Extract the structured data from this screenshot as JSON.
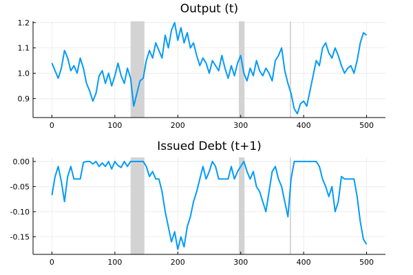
{
  "chart_data": [
    {
      "type": "line",
      "title": "Output (t)",
      "xlabel": "",
      "ylabel": "",
      "xlim": [
        -30,
        530
      ],
      "ylim": [
        0.825,
        1.205
      ],
      "xticks": [
        0,
        100,
        200,
        300,
        400,
        500
      ],
      "xtick_labels": [
        "0",
        "100",
        "200",
        "300",
        "400",
        "500"
      ],
      "yticks": [
        0.9,
        1.0,
        1.1,
        1.2
      ],
      "ytick_labels": [
        "0.9",
        "1.0",
        "1.1",
        "1.2"
      ],
      "grid": true,
      "legend": "none",
      "shaded_regions": [
        [
          125,
          147
        ],
        [
          297,
          306
        ],
        [
          378,
          380
        ]
      ],
      "series_color": "#009af9",
      "band_color": "#d3d3d3",
      "x": [
        0,
        5,
        10,
        15,
        20,
        25,
        30,
        35,
        40,
        45,
        50,
        55,
        60,
        65,
        70,
        75,
        80,
        85,
        90,
        95,
        100,
        105,
        110,
        115,
        120,
        125,
        130,
        135,
        140,
        145,
        150,
        155,
        160,
        165,
        170,
        175,
        180,
        185,
        190,
        195,
        200,
        205,
        210,
        215,
        220,
        225,
        230,
        235,
        240,
        245,
        250,
        255,
        260,
        265,
        270,
        275,
        280,
        285,
        290,
        295,
        300,
        305,
        310,
        315,
        320,
        325,
        330,
        335,
        340,
        345,
        350,
        355,
        360,
        365,
        370,
        375,
        380,
        385,
        390,
        395,
        400,
        405,
        410,
        415,
        420,
        425,
        430,
        435,
        440,
        445,
        450,
        455,
        460,
        465,
        470,
        475,
        480,
        485,
        490,
        495,
        500
      ],
      "values": [
        1.04,
        1.01,
        0.98,
        1.02,
        1.09,
        1.06,
        1.01,
        1.03,
        1.0,
        1.06,
        1.02,
        0.96,
        0.93,
        0.89,
        0.92,
        0.99,
        1.01,
        0.96,
        1.0,
        0.95,
        0.99,
        1.04,
        0.99,
        0.96,
        1.02,
        0.98,
        0.87,
        0.92,
        0.97,
        0.98,
        1.05,
        1.09,
        1.06,
        1.12,
        1.09,
        1.06,
        1.15,
        1.1,
        1.17,
        1.2,
        1.13,
        1.18,
        1.12,
        1.16,
        1.1,
        1.12,
        1.07,
        1.03,
        1.06,
        1.04,
        1.0,
        1.05,
        1.03,
        1.01,
        1.07,
        1.02,
        0.98,
        1.03,
        0.99,
        1.04,
        1.07,
        1.0,
        0.97,
        1.02,
        0.99,
        1.05,
        1.01,
        0.99,
        1.02,
        1.0,
        0.97,
        1.05,
        1.07,
        1.1,
        1.01,
        0.96,
        0.92,
        0.86,
        0.84,
        0.88,
        0.89,
        0.87,
        0.93,
        0.99,
        1.05,
        1.03,
        1.1,
        1.12,
        1.08,
        1.06,
        1.1,
        1.07,
        1.03,
        1.0,
        1.02,
        1.03,
        1.0,
        1.05,
        1.12,
        1.16,
        1.15
      ]
    },
    {
      "type": "line",
      "title": "Issued Debt (t+1)",
      "xlabel": "",
      "ylabel": "",
      "xlim": [
        -30,
        530
      ],
      "ylim": [
        -0.185,
        0.008
      ],
      "xticks": [
        0,
        100,
        200,
        300,
        400,
        500
      ],
      "xtick_labels": [
        "0",
        "100",
        "200",
        "300",
        "400",
        "500"
      ],
      "yticks": [
        0.0,
        -0.05,
        -0.1,
        -0.15
      ],
      "ytick_labels": [
        "0.00",
        "-0.05",
        "-0.10",
        "-0.15"
      ],
      "grid": true,
      "legend": "none",
      "shaded_regions": [
        [
          125,
          147
        ],
        [
          297,
          306
        ],
        [
          378,
          380
        ]
      ],
      "series_color": "#009af9",
      "band_color": "#d3d3d3",
      "x": [
        0,
        5,
        10,
        15,
        20,
        25,
        30,
        35,
        40,
        45,
        50,
        55,
        60,
        65,
        70,
        75,
        80,
        85,
        90,
        95,
        100,
        105,
        110,
        115,
        120,
        125,
        130,
        135,
        140,
        145,
        150,
        155,
        160,
        165,
        170,
        175,
        180,
        185,
        190,
        195,
        200,
        205,
        210,
        215,
        220,
        225,
        230,
        235,
        240,
        245,
        250,
        255,
        260,
        265,
        270,
        275,
        280,
        285,
        290,
        295,
        300,
        305,
        310,
        315,
        320,
        325,
        330,
        335,
        340,
        345,
        350,
        355,
        360,
        365,
        370,
        375,
        380,
        385,
        390,
        395,
        400,
        405,
        410,
        415,
        420,
        425,
        430,
        435,
        440,
        445,
        450,
        455,
        460,
        465,
        470,
        475,
        480,
        485,
        490,
        495,
        500
      ],
      "values": [
        -0.067,
        -0.03,
        -0.01,
        -0.04,
        -0.08,
        -0.03,
        -0.01,
        -0.035,
        -0.035,
        -0.035,
        -0.002,
        0.0,
        0.0,
        -0.005,
        0.0,
        -0.01,
        -0.003,
        -0.01,
        0.0,
        -0.015,
        0.0,
        -0.008,
        -0.012,
        0.0,
        -0.01,
        0.0,
        0.0,
        0.0,
        0.0,
        0.0,
        -0.01,
        -0.03,
        -0.02,
        -0.035,
        -0.035,
        -0.06,
        -0.1,
        -0.13,
        -0.16,
        -0.14,
        -0.175,
        -0.15,
        -0.17,
        -0.13,
        -0.11,
        -0.08,
        -0.06,
        -0.035,
        -0.01,
        -0.035,
        -0.02,
        0.0,
        -0.01,
        -0.035,
        -0.035,
        -0.035,
        -0.035,
        -0.01,
        -0.035,
        -0.02,
        -0.01,
        0.0,
        -0.02,
        -0.035,
        -0.02,
        -0.05,
        -0.06,
        -0.08,
        -0.1,
        -0.06,
        -0.02,
        -0.01,
        -0.035,
        -0.05,
        -0.08,
        -0.11,
        -0.035,
        0.0,
        0.0,
        0.0,
        0.0,
        0.0,
        0.0,
        0.0,
        0.0,
        -0.01,
        -0.035,
        -0.05,
        -0.07,
        -0.05,
        -0.1,
        -0.08,
        -0.03,
        -0.035,
        -0.035,
        -0.035,
        -0.035,
        -0.07,
        -0.12,
        -0.155,
        -0.165
      ]
    }
  ]
}
